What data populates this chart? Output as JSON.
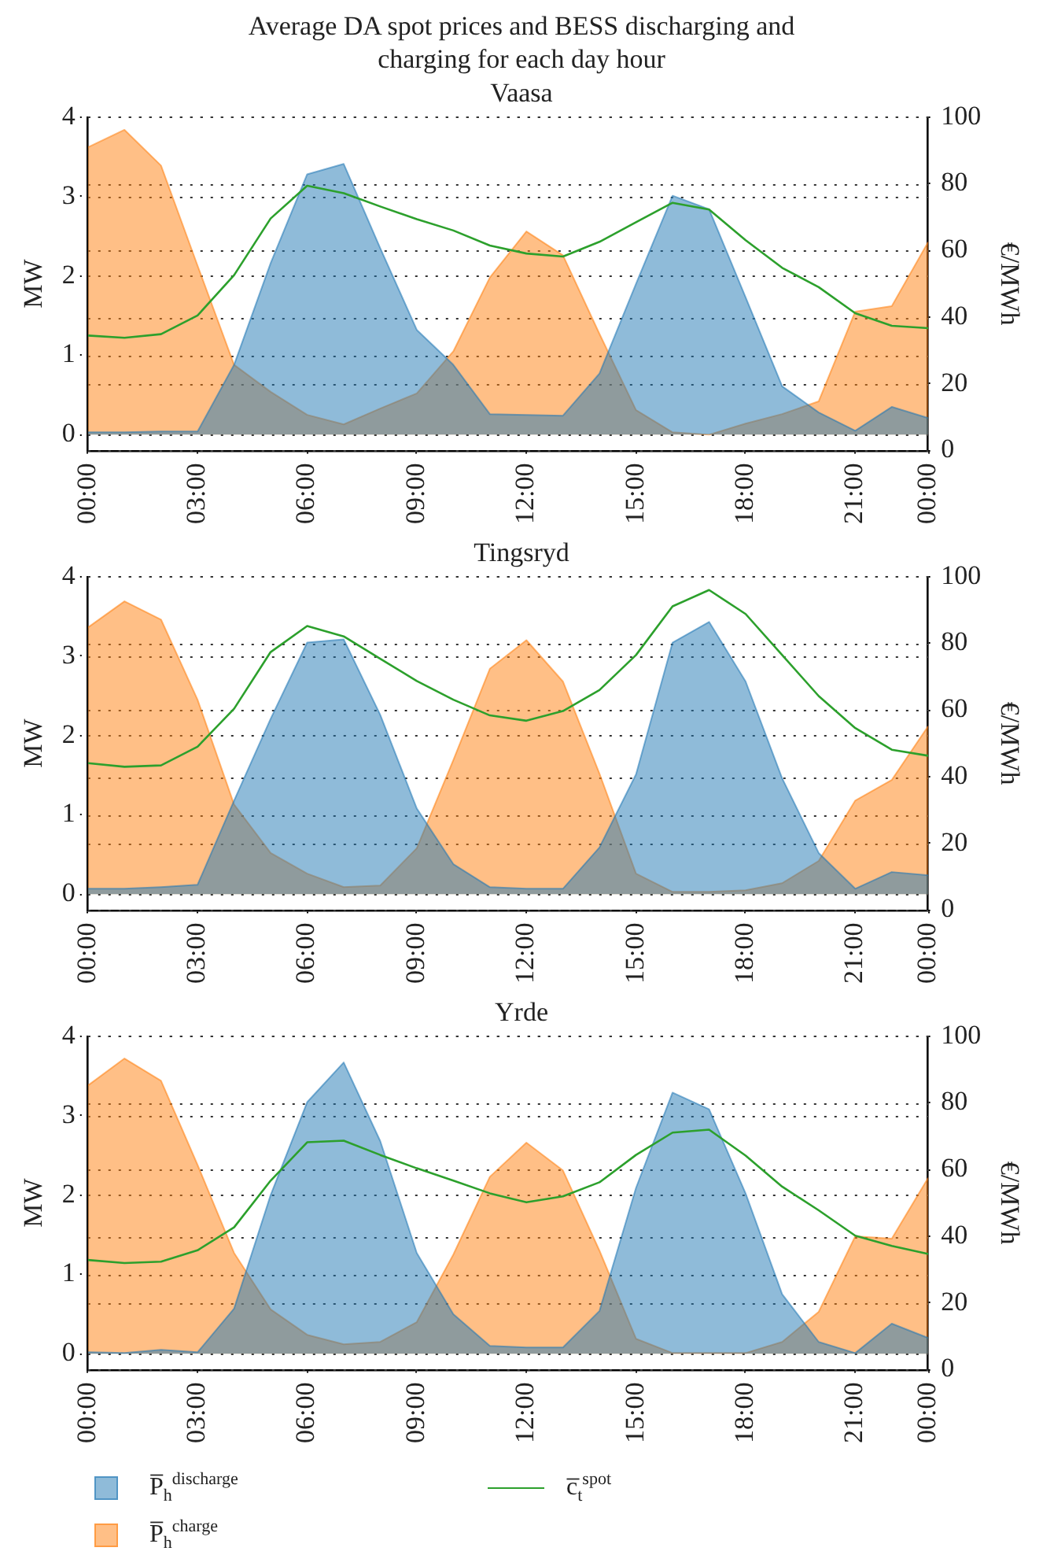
{
  "chart_data": [
    {
      "type": "area",
      "title": "Average DA spot prices and BESS discharging and charging for each day hour",
      "subtitle": "Vaasa",
      "ylabel": "MW",
      "y2label": "€/MWh",
      "x": [
        0,
        1,
        2,
        3,
        4,
        5,
        6,
        7,
        8,
        9,
        10,
        11,
        12,
        13,
        14,
        15,
        16,
        17,
        18,
        19,
        20,
        21,
        22,
        23
      ],
      "xlim": [
        0,
        23
      ],
      "xticks": [
        {
          "value": 0,
          "label": "00:00"
        },
        {
          "value": 3,
          "label": "03:00"
        },
        {
          "value": 6,
          "label": "06:00"
        },
        {
          "value": 9,
          "label": "09:00"
        },
        {
          "value": 12,
          "label": "12:00"
        },
        {
          "value": 15,
          "label": "15:00"
        },
        {
          "value": 18,
          "label": "18:00"
        },
        {
          "value": 21,
          "label": "21:00"
        },
        {
          "value": 23,
          "label": "00:00"
        }
      ],
      "ylim": [
        -0.2,
        4
      ],
      "yticks": [
        0,
        1,
        2,
        3,
        4
      ],
      "y2lim": [
        0,
        100
      ],
      "y2ticks": [
        0,
        20,
        40,
        60,
        80,
        100
      ],
      "grid": "y",
      "legend": "bottom",
      "marker": "none",
      "series": [
        {
          "name": "P̅$_{h}$$^{discharge}$",
          "color": "#1f77b4",
          "values": [
            0.03,
            0.03,
            0.04,
            0.04,
            0.88,
            2.16,
            3.28,
            3.41,
            2.35,
            1.32,
            0.88,
            0.26,
            0.25,
            0.24,
            0.77,
            1.9,
            3.01,
            2.84,
            1.73,
            0.61,
            0.28,
            0.05,
            0.35,
            0.21
          ]
        },
        {
          "name": "P̅$_{h}$$^{charge}$",
          "color": "#ff7f0e",
          "values": [
            3.62,
            3.84,
            3.39,
            2.13,
            0.88,
            0.54,
            0.25,
            0.13,
            0.33,
            0.52,
            1.05,
            1.98,
            2.56,
            2.26,
            1.27,
            0.31,
            0.03,
            0.0,
            0.14,
            0.26,
            0.42,
            1.55,
            1.62,
            2.43
          ]
        },
        {
          "name": "c̅$_{t}$$^{spot}$",
          "type": "line",
          "axis": "y2",
          "color": "#2ca02c",
          "values": [
            34.5,
            33.8,
            34.9,
            40.5,
            52.6,
            69.6,
            79.4,
            77.2,
            73.2,
            69.4,
            66.0,
            61.5,
            59.1,
            58.2,
            62.6,
            68.5,
            74.3,
            72.3,
            63.1,
            54.8,
            49.0,
            41.2,
            37.4,
            36.7
          ]
        }
      ]
    },
    {
      "type": "area",
      "title": "Tingsryd",
      "ylabel": "MW",
      "y2label": "€/MWh",
      "x": [
        0,
        1,
        2,
        3,
        4,
        5,
        6,
        7,
        8,
        9,
        10,
        11,
        12,
        13,
        14,
        15,
        16,
        17,
        18,
        19,
        20,
        21,
        22,
        23
      ],
      "xlim": [
        0,
        23
      ],
      "xticks": [
        {
          "value": 0,
          "label": "00:00"
        },
        {
          "value": 3,
          "label": "03:00"
        },
        {
          "value": 6,
          "label": "06:00"
        },
        {
          "value": 9,
          "label": "09:00"
        },
        {
          "value": 12,
          "label": "12:00"
        },
        {
          "value": 15,
          "label": "15:00"
        },
        {
          "value": 18,
          "label": "18:00"
        },
        {
          "value": 21,
          "label": "21:00"
        },
        {
          "value": 23,
          "label": "00:00"
        }
      ],
      "ylim": [
        -0.2,
        4
      ],
      "yticks": [
        0,
        1,
        2,
        3,
        4
      ],
      "y2lim": [
        0,
        100
      ],
      "y2ticks": [
        0,
        20,
        40,
        60,
        80,
        100
      ],
      "grid": "y",
      "legend": false,
      "marker": "none",
      "series": [
        {
          "color": "#1f77b4",
          "values": [
            0.07,
            0.07,
            0.09,
            0.12,
            1.18,
            2.21,
            3.17,
            3.21,
            2.26,
            1.08,
            0.38,
            0.09,
            0.07,
            0.07,
            0.59,
            1.51,
            3.17,
            3.43,
            2.68,
            1.46,
            0.52,
            0.07,
            0.28,
            0.24
          ]
        },
        {
          "color": "#ff7f0e",
          "values": [
            3.36,
            3.69,
            3.46,
            2.45,
            1.13,
            0.52,
            0.26,
            0.09,
            0.11,
            0.58,
            1.69,
            2.84,
            3.2,
            2.68,
            1.52,
            0.26,
            0.03,
            0.03,
            0.05,
            0.14,
            0.42,
            1.18,
            1.44,
            2.12
          ]
        },
        {
          "type": "line",
          "axis": "y2",
          "color": "#2ca02c",
          "values": [
            44.1,
            43.0,
            43.4,
            49.0,
            60.4,
            77.4,
            85.2,
            82.1,
            75.4,
            68.7,
            63.1,
            58.4,
            56.8,
            59.7,
            66.0,
            76.5,
            91.1,
            96.0,
            88.8,
            76.5,
            64.2,
            54.6,
            48.1,
            46.3
          ]
        }
      ]
    },
    {
      "type": "area",
      "title": "Yrde",
      "ylabel": "MW",
      "y2label": "€/MWh",
      "x": [
        0,
        1,
        2,
        3,
        4,
        5,
        6,
        7,
        8,
        9,
        10,
        11,
        12,
        13,
        14,
        15,
        16,
        17,
        18,
        19,
        20,
        21,
        22,
        23
      ],
      "xlim": [
        0,
        23
      ],
      "xticks": [
        {
          "value": 0,
          "label": "00:00"
        },
        {
          "value": 3,
          "label": "03:00"
        },
        {
          "value": 6,
          "label": "06:00"
        },
        {
          "value": 9,
          "label": "09:00"
        },
        {
          "value": 12,
          "label": "12:00"
        },
        {
          "value": 15,
          "label": "15:00"
        },
        {
          "value": 18,
          "label": "18:00"
        },
        {
          "value": 21,
          "label": "21:00"
        },
        {
          "value": 23,
          "label": "00:00"
        }
      ],
      "ylim": [
        -0.2,
        4
      ],
      "yticks": [
        0,
        1,
        2,
        3,
        4
      ],
      "y2lim": [
        0,
        100
      ],
      "y2ticks": [
        0,
        20,
        40,
        60,
        80,
        100
      ],
      "grid": "y",
      "legend": false,
      "marker": "none",
      "series": [
        {
          "color": "#1f77b4",
          "values": [
            0.02,
            0.01,
            0.05,
            0.02,
            0.57,
            2.0,
            3.17,
            3.67,
            2.68,
            1.27,
            0.5,
            0.1,
            0.08,
            0.08,
            0.54,
            2.09,
            3.29,
            3.08,
            2.02,
            0.75,
            0.15,
            0.01,
            0.38,
            0.2
          ]
        },
        {
          "color": "#ff7f0e",
          "values": [
            3.38,
            3.72,
            3.44,
            2.38,
            1.27,
            0.56,
            0.24,
            0.12,
            0.15,
            0.4,
            1.25,
            2.23,
            2.66,
            2.31,
            1.3,
            0.19,
            0.01,
            0.01,
            0.01,
            0.15,
            0.53,
            1.48,
            1.45,
            2.22
          ]
        },
        {
          "type": "line",
          "axis": "y2",
          "color": "#2ca02c",
          "values": [
            32.9,
            32.0,
            32.4,
            35.8,
            42.7,
            56.7,
            68.2,
            68.7,
            64.4,
            60.4,
            56.7,
            52.9,
            50.2,
            52.0,
            56.2,
            64.4,
            71.1,
            72.0,
            64.2,
            54.9,
            47.8,
            40.2,
            37.1,
            34.7
          ]
        }
      ]
    }
  ]
}
